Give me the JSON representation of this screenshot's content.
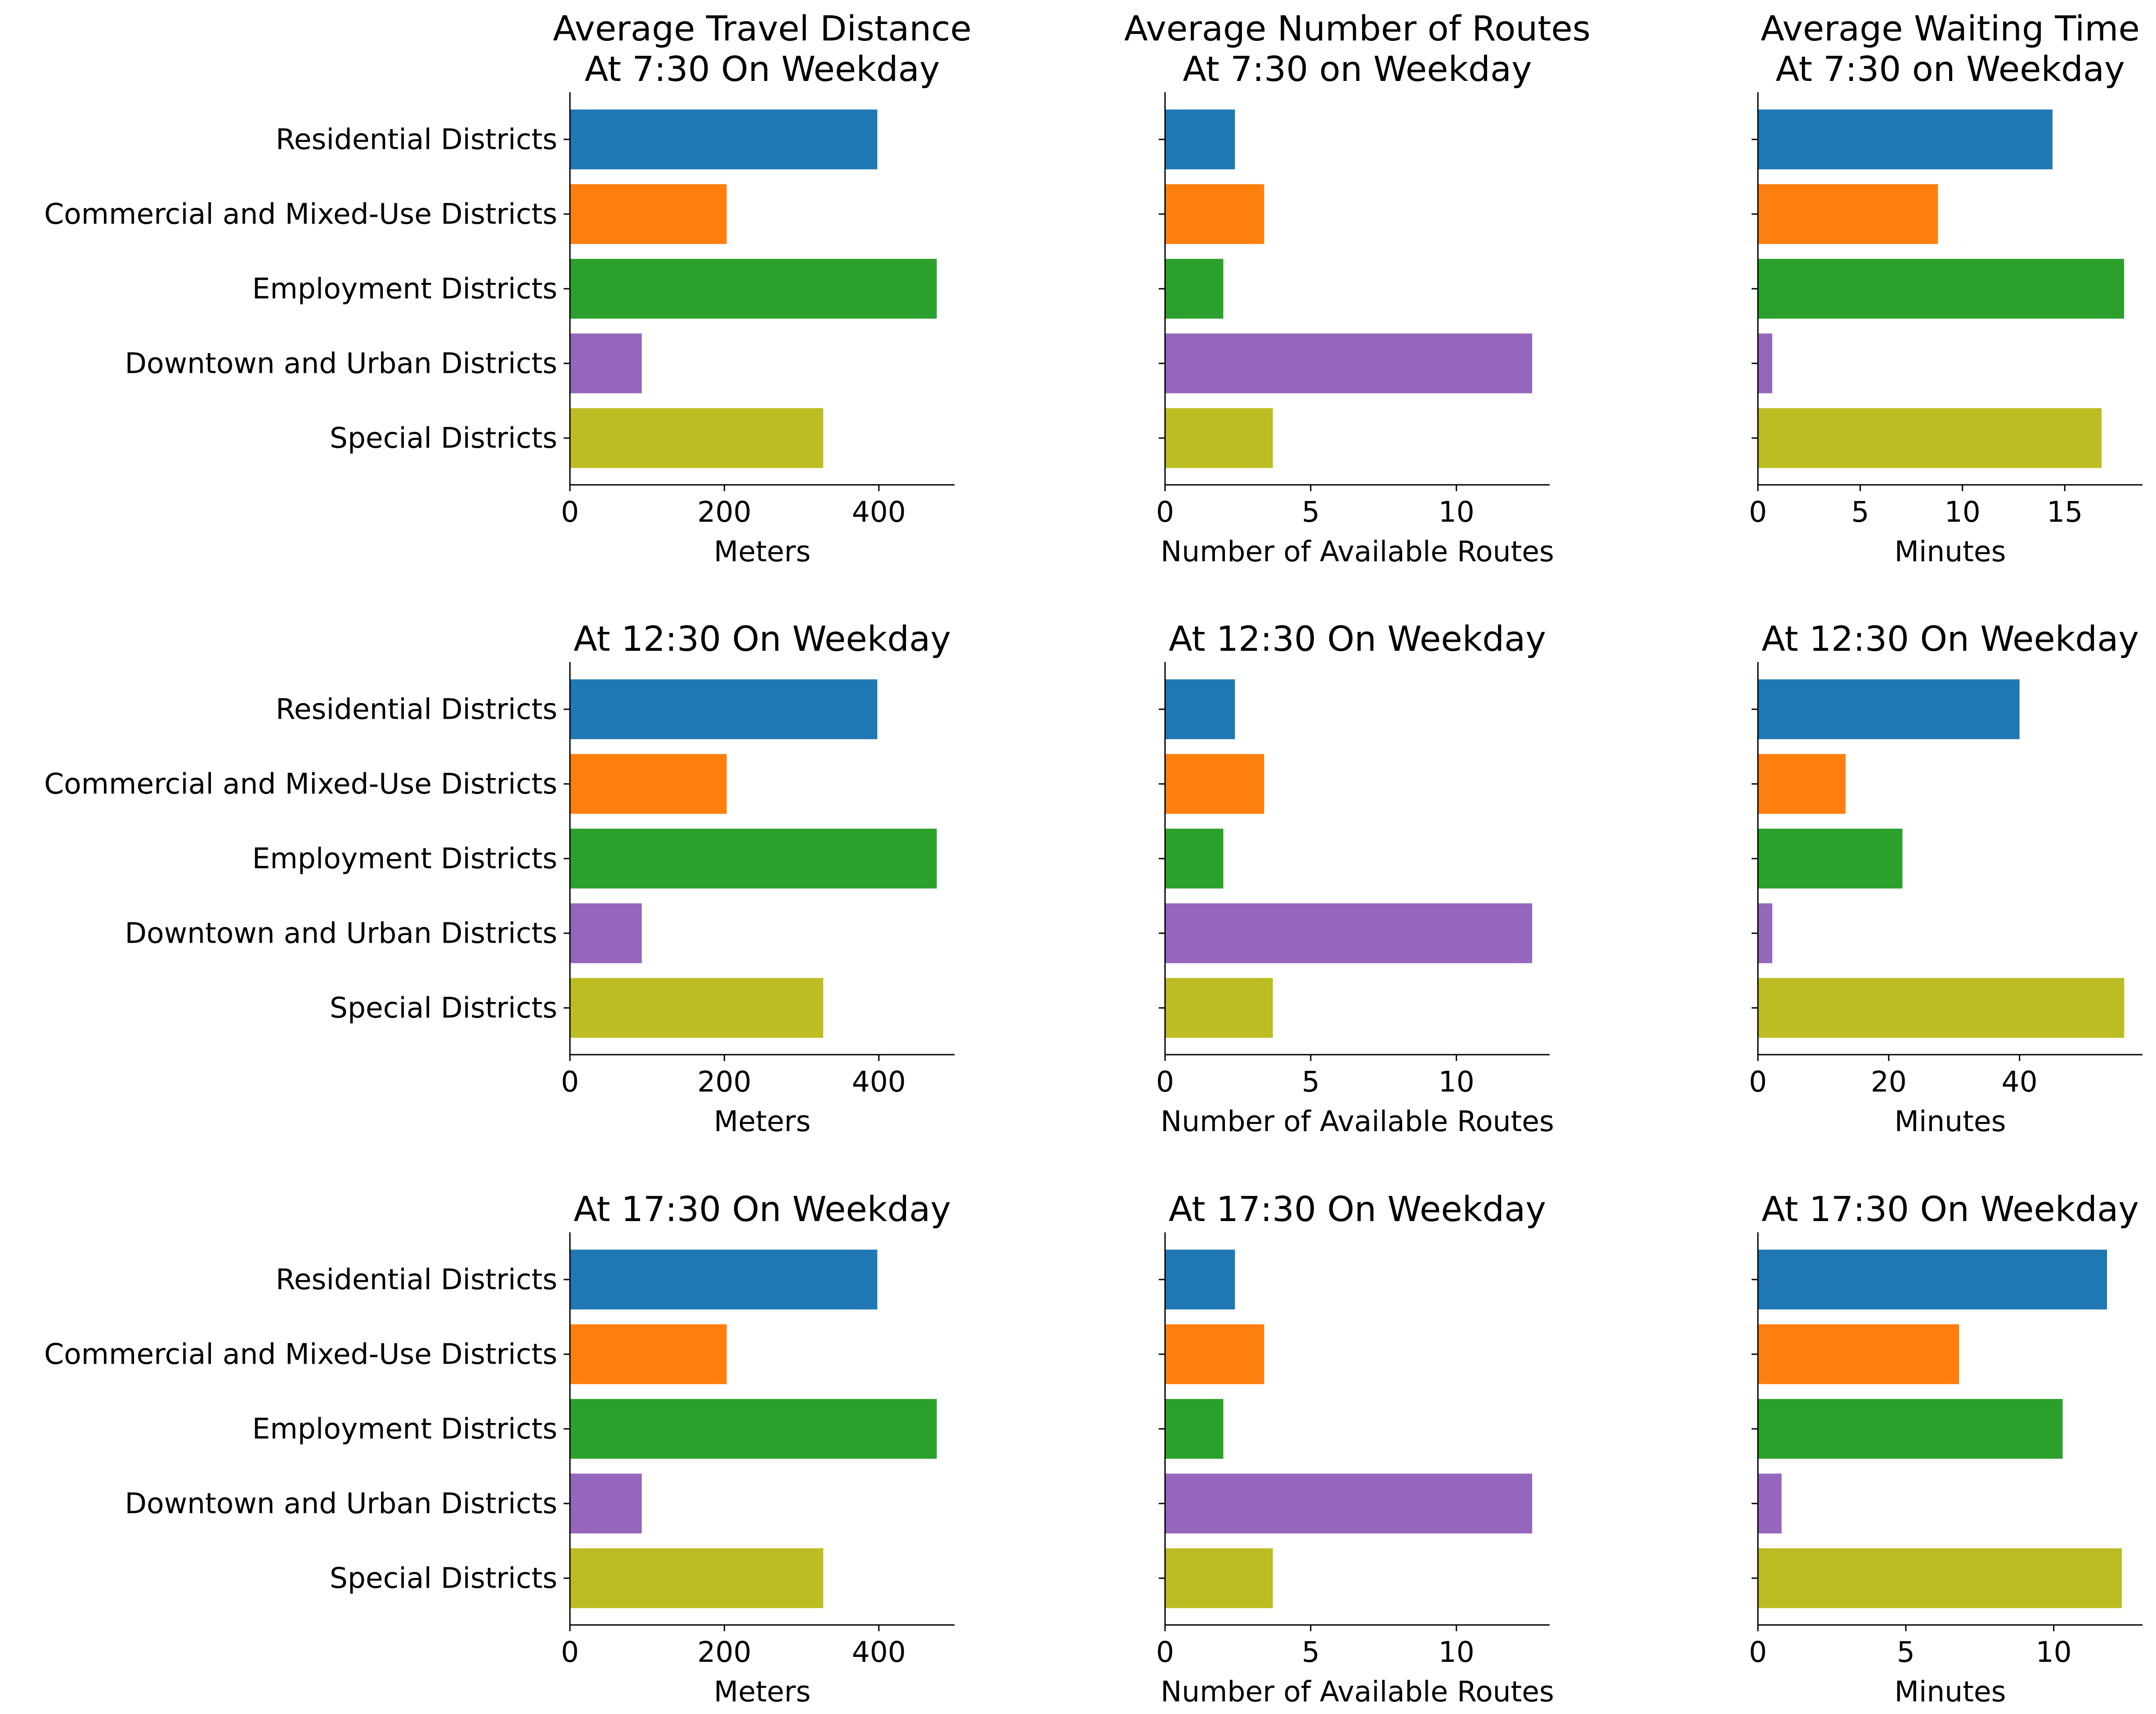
{
  "colors": {
    "Residential Districts": "#1f77b4",
    "Commercial and Mixed-Use Districts": "#ff7f0e",
    "Employment Districts": "#2ca02c",
    "Downtown and Urban Districts": "#9467bd",
    "Special Districts": "#bcbd22"
  },
  "chart_data": [
    {
      "type": "bar",
      "orientation": "horizontal",
      "title": [
        "Average Travel Distance",
        "At 7:30 On Weekday"
      ],
      "xlabel": "Meters",
      "categories": [
        "Residential Districts",
        "Commercial and Mixed-Use Districts",
        "Employment Districts",
        "Downtown and Urban Districts",
        "Special Districts"
      ],
      "values": [
        398,
        203,
        475,
        93,
        328
      ],
      "xlim": [
        0,
        498
      ],
      "xticks": [
        0,
        200,
        400
      ]
    },
    {
      "type": "bar",
      "orientation": "horizontal",
      "title": [
        "Average Number of Routes",
        "At 7:30 on Weekday"
      ],
      "xlabel": "Number of Available Routes",
      "categories": [
        "Residential Districts",
        "Commercial and Mixed-Use Districts",
        "Employment Districts",
        "Downtown and Urban Districts",
        "Special Districts"
      ],
      "values": [
        2.4,
        3.4,
        2.0,
        12.6,
        3.7
      ],
      "xlim": [
        0,
        13.2
      ],
      "xticks": [
        0,
        5,
        10
      ]
    },
    {
      "type": "bar",
      "orientation": "horizontal",
      "title": [
        "Average Waiting Time",
        "At 7:30 on Weekday"
      ],
      "xlabel": "Minutes",
      "categories": [
        "Residential Districts",
        "Commercial and Mixed-Use Districts",
        "Employment Districts",
        "Downtown and Urban Districts",
        "Special Districts"
      ],
      "values": [
        14.4,
        8.8,
        17.9,
        0.7,
        16.8
      ],
      "xlim": [
        0,
        18.8
      ],
      "xticks": [
        0,
        5,
        10,
        15
      ]
    },
    {
      "type": "bar",
      "orientation": "horizontal",
      "title": [
        "At 12:30 On Weekday"
      ],
      "xlabel": "Meters",
      "categories": [
        "Residential Districts",
        "Commercial and Mixed-Use Districts",
        "Employment Districts",
        "Downtown and Urban Districts",
        "Special Districts"
      ],
      "values": [
        398,
        203,
        475,
        93,
        328
      ],
      "xlim": [
        0,
        498
      ],
      "xticks": [
        0,
        200,
        400
      ]
    },
    {
      "type": "bar",
      "orientation": "horizontal",
      "title": [
        "At 12:30 On Weekday"
      ],
      "xlabel": "Number of Available Routes",
      "categories": [
        "Residential Districts",
        "Commercial and Mixed-Use Districts",
        "Employment Districts",
        "Downtown and Urban Districts",
        "Special Districts"
      ],
      "values": [
        2.4,
        3.4,
        2.0,
        12.6,
        3.7
      ],
      "xlim": [
        0,
        13.2
      ],
      "xticks": [
        0,
        5,
        10
      ]
    },
    {
      "type": "bar",
      "orientation": "horizontal",
      "title": [
        "At 12:30 On Weekday"
      ],
      "xlabel": "Minutes",
      "categories": [
        "Residential Districts",
        "Commercial and Mixed-Use Districts",
        "Employment Districts",
        "Downtown and Urban Districts",
        "Special Districts"
      ],
      "values": [
        40,
        13.4,
        22.1,
        2.2,
        56
      ],
      "xlim": [
        0,
        58.8
      ],
      "xticks": [
        0,
        20,
        40
      ]
    },
    {
      "type": "bar",
      "orientation": "horizontal",
      "title": [
        "At 17:30 On Weekday"
      ],
      "xlabel": "Meters",
      "categories": [
        "Residential Districts",
        "Commercial and Mixed-Use Districts",
        "Employment Districts",
        "Downtown and Urban Districts",
        "Special Districts"
      ],
      "values": [
        398,
        203,
        475,
        93,
        328
      ],
      "xlim": [
        0,
        498
      ],
      "xticks": [
        0,
        200,
        400
      ]
    },
    {
      "type": "bar",
      "orientation": "horizontal",
      "title": [
        "At 17:30 On Weekday"
      ],
      "xlabel": "Number of Available Routes",
      "categories": [
        "Residential Districts",
        "Commercial and Mixed-Use Districts",
        "Employment Districts",
        "Downtown and Urban Districts",
        "Special Districts"
      ],
      "values": [
        2.4,
        3.4,
        2.0,
        12.6,
        3.7
      ],
      "xlim": [
        0,
        13.2
      ],
      "xticks": [
        0,
        5,
        10
      ]
    },
    {
      "type": "bar",
      "orientation": "horizontal",
      "title": [
        "At 17:30 On Weekday"
      ],
      "xlabel": "Minutes",
      "categories": [
        "Residential Districts",
        "Commercial and Mixed-Use Districts",
        "Employment Districts",
        "Downtown and Urban Districts",
        "Special Districts"
      ],
      "values": [
        11.8,
        6.8,
        10.3,
        0.8,
        12.3
      ],
      "xlim": [
        0,
        13.0
      ],
      "xticks": [
        0,
        5,
        10
      ]
    }
  ]
}
